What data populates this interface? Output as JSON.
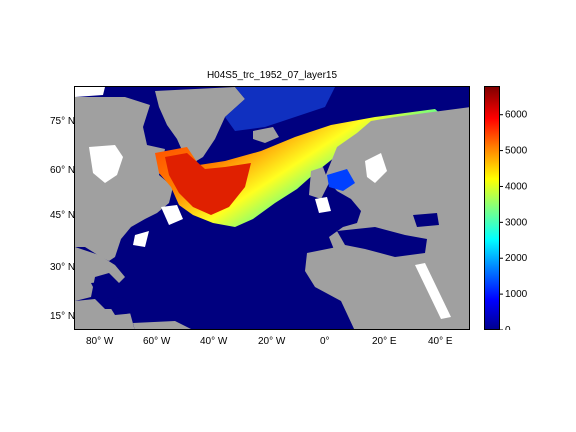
{
  "title": "H04S5_trc_1952_07_layer15",
  "lat_ticks": [
    "75° N",
    "60° N",
    "45° N",
    "30° N",
    "15° N"
  ],
  "lon_ticks": [
    "80° W",
    "60° W",
    "40° W",
    "20° W",
    "0°",
    "20° E",
    "40° E"
  ],
  "colorbar": {
    "ticks": [
      "0",
      "1000",
      "2000",
      "3000",
      "4000",
      "5000",
      "6000"
    ],
    "min": 0,
    "max": 6800,
    "colormap": "jet"
  },
  "colors": {
    "ocean_background": "#00007f",
    "land": "#a0a0a0",
    "no_data": "#ffffff"
  }
}
